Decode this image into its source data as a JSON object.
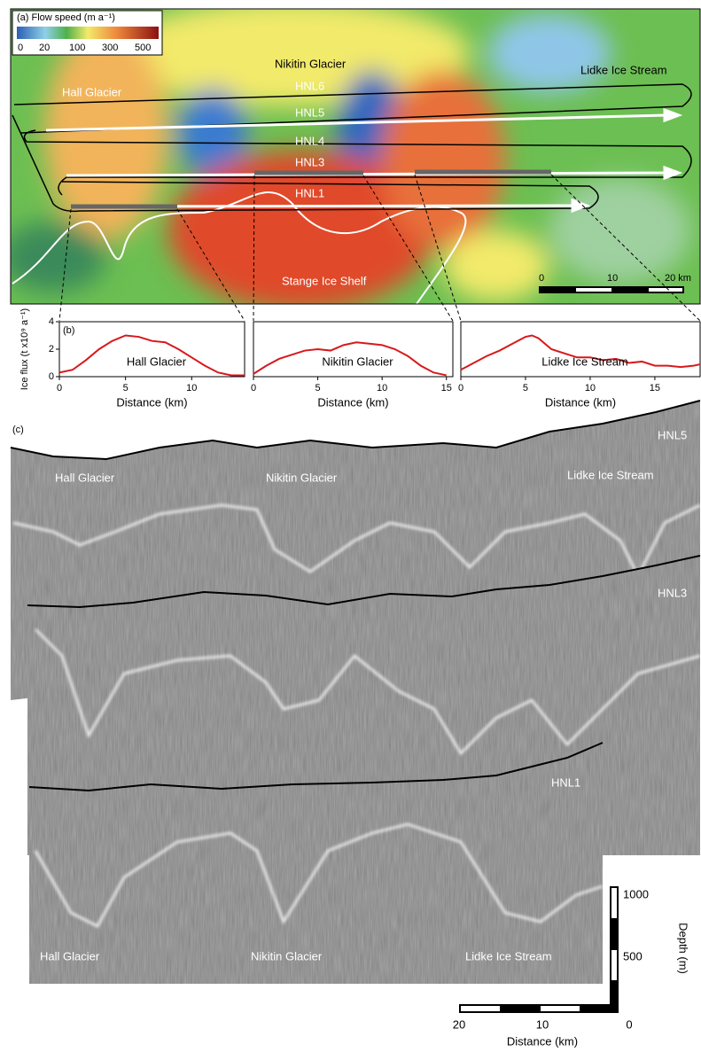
{
  "panel_a": {
    "title": "(a) Flow speed (m a⁻¹)",
    "colorbar_ticks": [
      "0",
      "20",
      "100",
      "300",
      "500"
    ],
    "labels": {
      "hall": "Hall Glacier",
      "nikitin": "Nikitin Glacier",
      "lidke": "Lidke Ice Stream",
      "shelf": "Stange Ice Shelf"
    },
    "lines": {
      "hnl6": "HNL6",
      "hnl5": "HNL5",
      "hnl4": "HNL4",
      "hnl3": "HNL3",
      "hnl1": "HNL1"
    },
    "scale_ticks": [
      "0",
      "10",
      "20 km"
    ]
  },
  "chart_data": [
    {
      "type": "line",
      "panel_label": "(b)",
      "title": "Hall Glacier",
      "ylabel": "Ice flux (t x10⁹ a⁻¹)",
      "xlabel": "Distance (km)",
      "x": [
        0,
        1,
        2,
        3,
        4,
        5,
        6,
        7,
        8,
        9,
        10,
        11,
        12,
        13,
        14
      ],
      "values": [
        0.3,
        0.5,
        1.2,
        2,
        2.6,
        3,
        2.9,
        2.6,
        2.5,
        2,
        1.4,
        0.8,
        0.3,
        0.1,
        0.1
      ],
      "color": "#d7191c",
      "xlim": [
        0,
        14
      ],
      "xticks": [
        0,
        5,
        10
      ],
      "ylim": [
        0,
        4
      ],
      "yticks": [
        0,
        2,
        4
      ]
    },
    {
      "type": "line",
      "title": "Nikitin Glacier",
      "xlabel": "Distance (km)",
      "x": [
        0,
        1,
        2,
        3,
        4,
        5,
        6,
        7,
        8,
        9,
        10,
        11,
        12,
        13,
        14,
        15
      ],
      "values": [
        0.2,
        0.8,
        1.3,
        1.6,
        1.9,
        2,
        1.9,
        2.3,
        2.5,
        2.4,
        2.3,
        2,
        1.5,
        0.8,
        0.3,
        0.1
      ],
      "color": "#d7191c",
      "xlim": [
        0,
        15.5
      ],
      "xticks": [
        0,
        5,
        10,
        15
      ],
      "ylim": [
        0,
        4
      ]
    },
    {
      "type": "line",
      "title": "Lidke Ice Stream",
      "xlabel": "Distance (km)",
      "x": [
        0,
        1,
        2,
        3,
        4,
        5,
        5.5,
        6,
        7,
        8,
        9,
        10,
        11,
        12,
        13,
        14,
        15,
        16,
        17,
        18,
        18.5
      ],
      "values": [
        0.5,
        1,
        1.5,
        1.9,
        2.4,
        2.9,
        3,
        2.8,
        2,
        1.7,
        1.4,
        1.4,
        1.2,
        1.3,
        1,
        1.1,
        0.8,
        0.8,
        0.7,
        0.8,
        0.9
      ],
      "color": "#d7191c",
      "xlim": [
        0,
        18.5
      ],
      "xticks": [
        0,
        5,
        10,
        15
      ],
      "ylim": [
        0,
        4
      ]
    }
  ],
  "panel_c": {
    "label": "(c)",
    "hnl5": {
      "name": "HNL5",
      "right": "Lidke Ice Stream",
      "left": "Hall Glacier",
      "mid": "Nikitin Glacier"
    },
    "hnl3": {
      "name": "HNL3"
    },
    "hnl1": {
      "name": "HNL1",
      "left": "Hall Glacier",
      "mid": "Nikitin Glacier",
      "right": "Lidke Ice Stream"
    },
    "depth_ticks": [
      "1000",
      "500"
    ],
    "depth_label": "Depth (m)",
    "distance_ticks": [
      "20",
      "10",
      "0"
    ],
    "distance_label": "Distance (km)"
  }
}
